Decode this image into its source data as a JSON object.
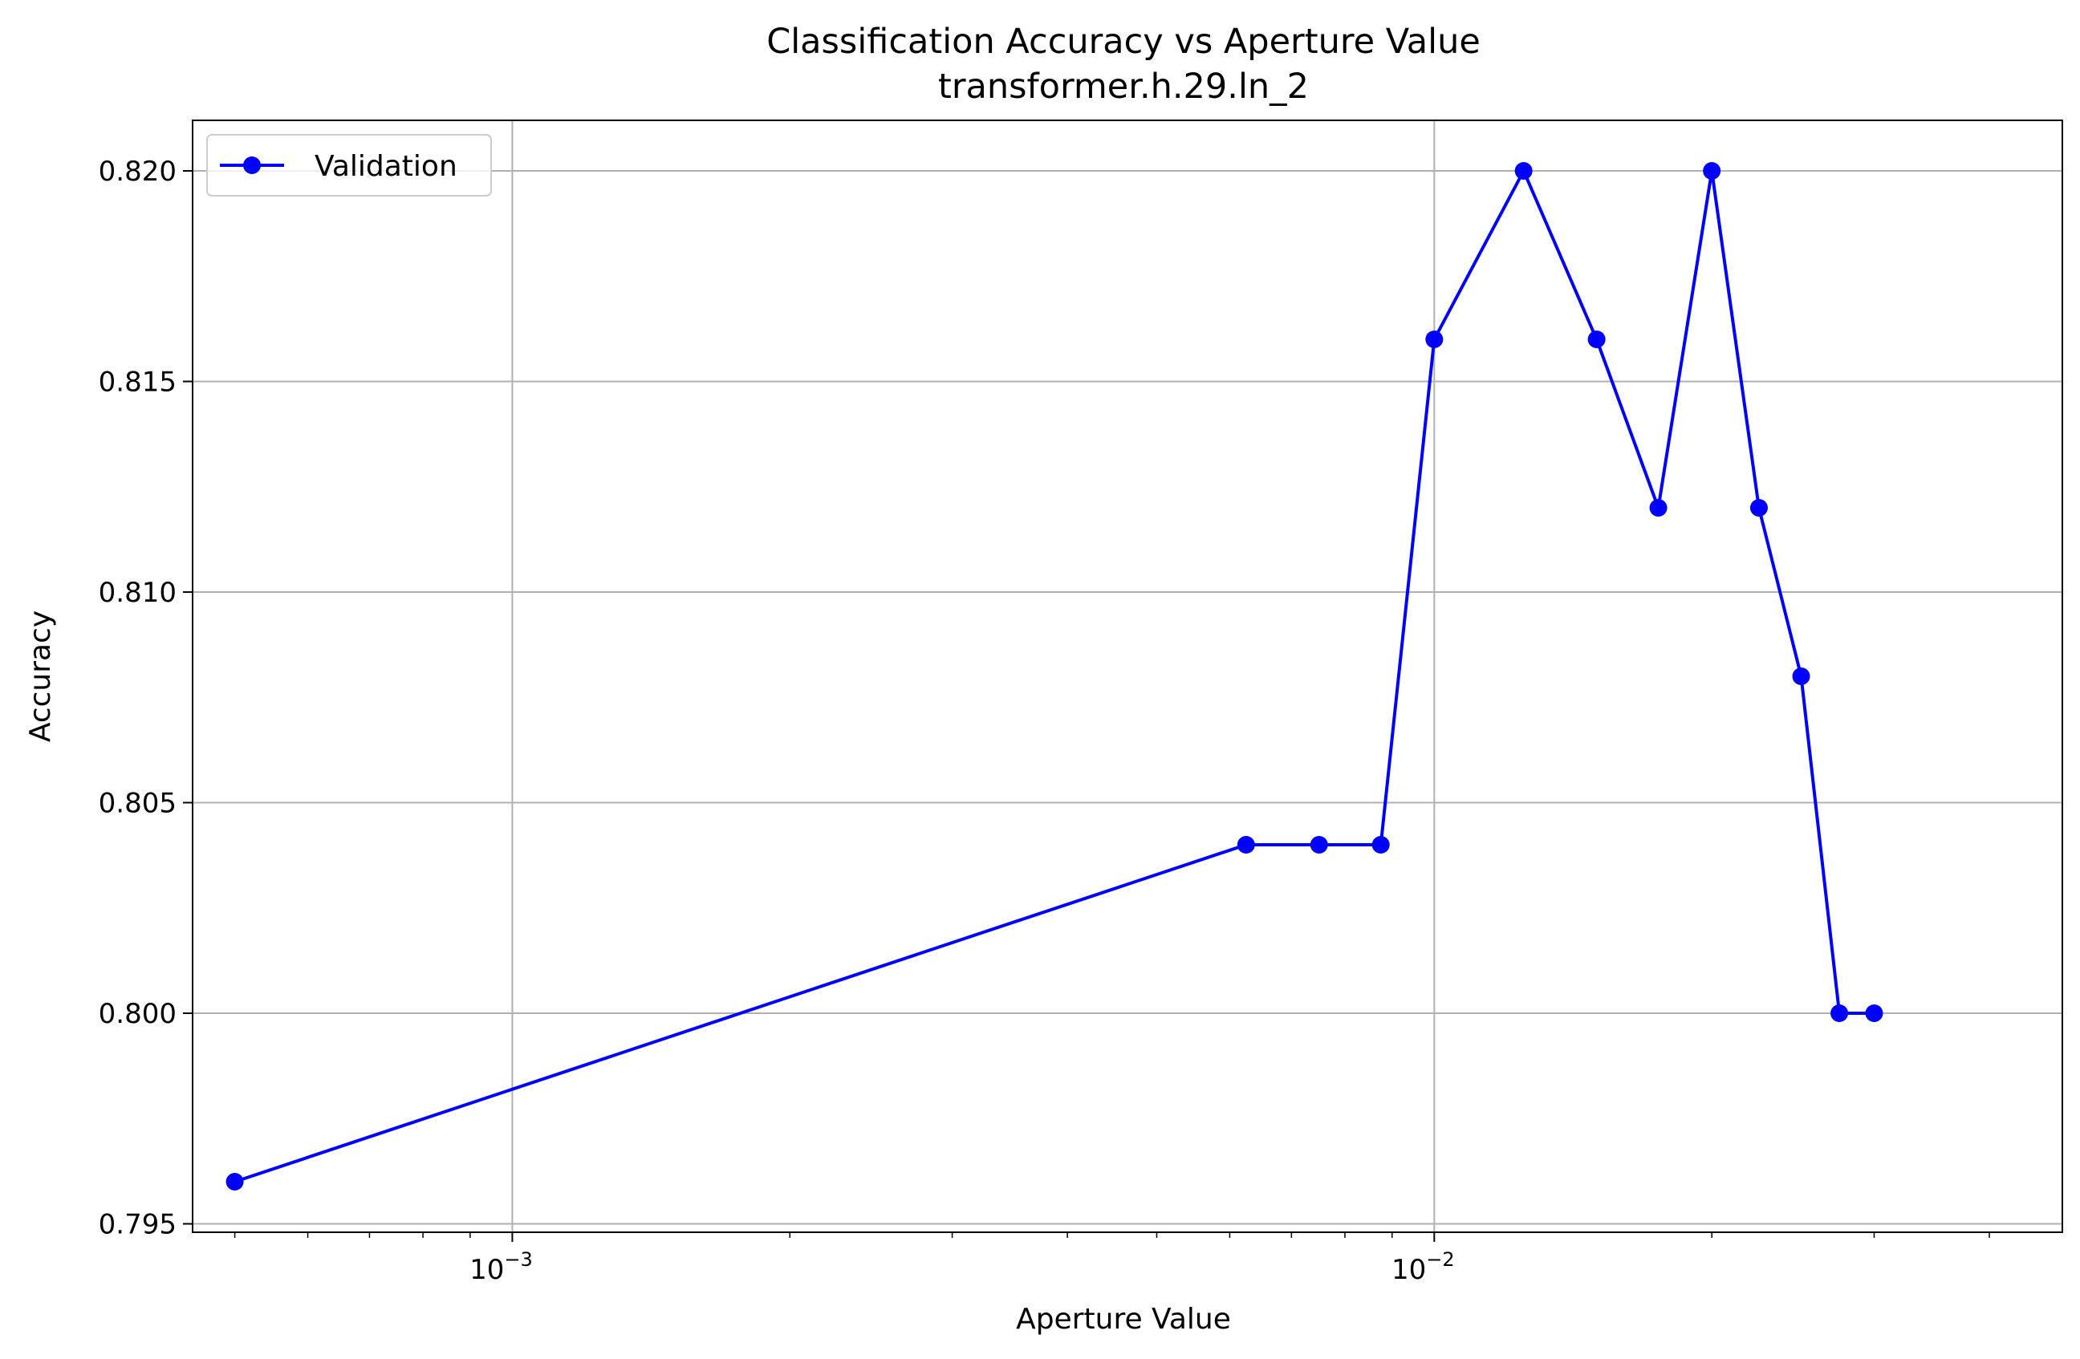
{
  "chart_data": {
    "type": "line",
    "title": "Classification Accuracy vs Aperture Value",
    "subtitle": "transformer.h.29.ln_2",
    "xlabel": "Aperture Value",
    "ylabel": "Accuracy",
    "xscale": "log",
    "xlim": [
      0.00045,
      0.048
    ],
    "ylim": [
      0.7948,
      0.8212
    ],
    "grid": true,
    "legend_position": "top-left",
    "x_ticks": [
      {
        "value": 0.001,
        "base": "10",
        "exp": "−3"
      },
      {
        "value": 0.01,
        "base": "10",
        "exp": "−2"
      }
    ],
    "y_ticks": [
      {
        "value": 0.795,
        "label": "0.795"
      },
      {
        "value": 0.8,
        "label": "0.800"
      },
      {
        "value": 0.805,
        "label": "0.805"
      },
      {
        "value": 0.81,
        "label": "0.810"
      },
      {
        "value": 0.815,
        "label": "0.815"
      },
      {
        "value": 0.82,
        "label": "0.820"
      }
    ],
    "series": [
      {
        "name": "Validation",
        "color": "#0000ff",
        "marker": "circle",
        "x": [
          0.0005,
          0.00625,
          0.0075,
          0.00875,
          0.01,
          0.0125,
          0.015,
          0.0175,
          0.02,
          0.0225,
          0.025,
          0.0275,
          0.03
        ],
        "y": [
          0.796,
          0.804,
          0.804,
          0.804,
          0.816,
          0.82,
          0.816,
          0.812,
          0.82,
          0.812,
          0.808,
          0.8,
          0.8
        ]
      }
    ]
  }
}
